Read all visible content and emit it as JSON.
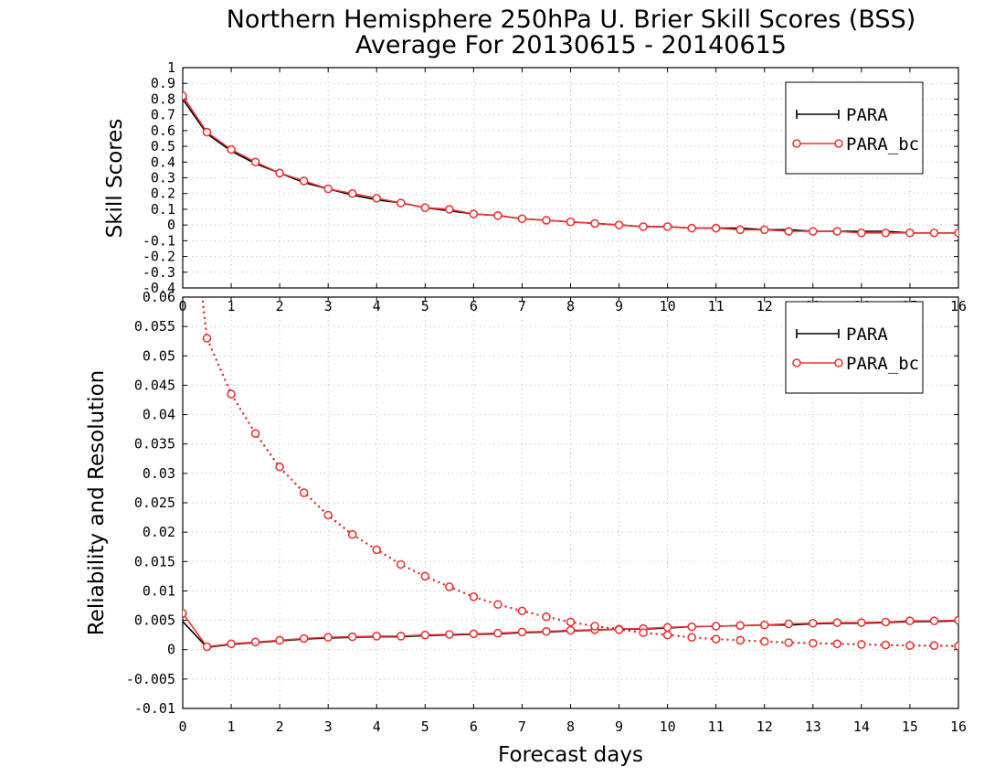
{
  "title": {
    "line1": "Northern Hemisphere 250hPa U. Brier Skill Scores (BSS)",
    "line2": "Average For 20130615 - 20140615"
  },
  "colors": {
    "PARA": "#000000",
    "PARA_bc": "#ee3333"
  },
  "chart_data": [
    {
      "type": "line",
      "ylabel": "Skill Scores",
      "xlabel": "",
      "xlim": [
        0,
        16
      ],
      "ylim": [
        -0.4,
        1
      ],
      "grid": true,
      "legend_position": "top-right",
      "legend": [
        "PARA",
        "PARA_bc"
      ],
      "xticks": [
        "0",
        "1",
        "2",
        "3",
        "4",
        "5",
        "6",
        "7",
        "8",
        "9",
        "10",
        "11",
        "12",
        "13",
        "14",
        "15",
        "16"
      ],
      "yticks": [
        "-0.4",
        "-0.3",
        "-0.2",
        "-0.1",
        "0",
        "0.1",
        "0.2",
        "0.3",
        "0.4",
        "0.5",
        "0.6",
        "0.7",
        "0.8",
        "0.9",
        "1"
      ],
      "x": [
        0,
        0.5,
        1,
        1.5,
        2,
        2.5,
        3,
        3.5,
        4,
        4.5,
        5,
        5.5,
        6,
        6.5,
        7,
        7.5,
        8,
        8.5,
        9,
        9.5,
        10,
        10.5,
        11,
        11.5,
        12,
        12.5,
        13,
        13.5,
        14,
        14.5,
        15,
        15.5,
        16
      ],
      "series": [
        {
          "name": "PARA",
          "color": "#000000",
          "marker": "none",
          "dash": "solid",
          "values": [
            0.8,
            0.58,
            0.47,
            0.39,
            0.33,
            0.27,
            0.23,
            0.19,
            0.16,
            0.14,
            0.11,
            0.09,
            0.07,
            0.06,
            0.04,
            0.03,
            0.02,
            0.01,
            0.0,
            -0.01,
            -0.01,
            -0.02,
            -0.02,
            -0.02,
            -0.03,
            -0.03,
            -0.04,
            -0.04,
            -0.04,
            -0.04,
            -0.05,
            -0.05,
            -0.05
          ]
        },
        {
          "name": "PARA_bc",
          "color": "#ee3333",
          "marker": "circle",
          "dash": "solid",
          "values": [
            0.82,
            0.59,
            0.48,
            0.4,
            0.33,
            0.28,
            0.23,
            0.2,
            0.17,
            0.14,
            0.11,
            0.1,
            0.07,
            0.06,
            0.04,
            0.03,
            0.02,
            0.01,
            0.0,
            -0.01,
            -0.01,
            -0.02,
            -0.02,
            -0.03,
            -0.03,
            -0.04,
            -0.04,
            -0.04,
            -0.05,
            -0.05,
            -0.05,
            -0.05,
            -0.05
          ]
        }
      ]
    },
    {
      "type": "line",
      "ylabel": "Reliability and Resolution",
      "xlabel": "Forecast days",
      "xlim": [
        0,
        16
      ],
      "ylim": [
        -0.01,
        0.06
      ],
      "grid": true,
      "legend_position": "top-right",
      "legend": [
        "PARA",
        "PARA_bc"
      ],
      "xticks": [
        "0",
        "1",
        "2",
        "3",
        "4",
        "5",
        "6",
        "7",
        "8",
        "9",
        "10",
        "11",
        "12",
        "13",
        "14",
        "15",
        "16"
      ],
      "yticks": [
        "-0.01",
        "-0.005",
        "0",
        "0.005",
        "0.01",
        "0.015",
        "0.02",
        "0.025",
        "0.03",
        "0.035",
        "0.04",
        "0.045",
        "0.05",
        "0.055",
        "0.06"
      ],
      "x": [
        0,
        0.5,
        1,
        1.5,
        2,
        2.5,
        3,
        3.5,
        4,
        4.5,
        5,
        5.5,
        6,
        6.5,
        7,
        7.5,
        8,
        8.5,
        9,
        9.5,
        10,
        10.5,
        11,
        11.5,
        12,
        12.5,
        13,
        13.5,
        14,
        14.5,
        15,
        15.5,
        16
      ],
      "series": [
        {
          "name": "PARA",
          "color": "#000000",
          "marker": "none",
          "dash": "solid",
          "values": [
            0.0048,
            0.0004,
            0.0009,
            0.0012,
            0.0015,
            0.0018,
            0.002,
            0.0021,
            0.0022,
            0.0022,
            0.0024,
            0.0025,
            0.0026,
            0.0027,
            0.0029,
            0.003,
            0.0032,
            0.0033,
            0.0035,
            0.0035,
            0.0037,
            0.0039,
            0.004,
            0.0041,
            0.0042,
            0.0042,
            0.0044,
            0.0045,
            0.0045,
            0.0046,
            0.0048,
            0.0048,
            0.0049
          ]
        },
        {
          "name": "PARA_bc",
          "color": "#ee3333",
          "marker": "circle",
          "dash": "solid",
          "values": [
            0.0062,
            0.0005,
            0.001,
            0.0013,
            0.0016,
            0.0019,
            0.0021,
            0.0022,
            0.0023,
            0.0023,
            0.0025,
            0.0026,
            0.0027,
            0.0028,
            0.003,
            0.0031,
            0.0033,
            0.0034,
            0.0035,
            0.0036,
            0.0038,
            0.0039,
            0.004,
            0.0041,
            0.0042,
            0.0044,
            0.0045,
            0.0046,
            0.0046,
            0.0047,
            0.0049,
            0.0049,
            0.005
          ]
        },
        {
          "name": "PARA",
          "color": "#000000",
          "marker": "none",
          "dash": "dotted",
          "values": [
            0.09,
            0.053,
            0.0435,
            0.0368,
            0.031,
            0.0268,
            0.0228,
            0.0196,
            0.017,
            0.0145,
            0.0125,
            0.0107,
            0.009,
            0.0077,
            0.0066,
            0.0056,
            0.0047,
            0.004,
            0.0035,
            0.0029,
            0.0025,
            0.0021,
            0.0018,
            0.0016,
            0.0014,
            0.0012,
            0.0011,
            0.001,
            0.0009,
            0.0008,
            0.0007,
            0.0007,
            0.0006
          ]
        },
        {
          "name": "PARA_bc",
          "color": "#ee3333",
          "marker": "circle",
          "dash": "dotted",
          "values": [
            0.09,
            0.053,
            0.0435,
            0.0368,
            0.0311,
            0.0267,
            0.0229,
            0.0196,
            0.017,
            0.0145,
            0.0125,
            0.0107,
            0.009,
            0.0077,
            0.0066,
            0.0056,
            0.0047,
            0.004,
            0.0034,
            0.0029,
            0.0025,
            0.0021,
            0.0018,
            0.0016,
            0.0014,
            0.0012,
            0.0011,
            0.001,
            0.0009,
            0.0008,
            0.0007,
            0.0007,
            0.0006
          ]
        }
      ]
    }
  ]
}
